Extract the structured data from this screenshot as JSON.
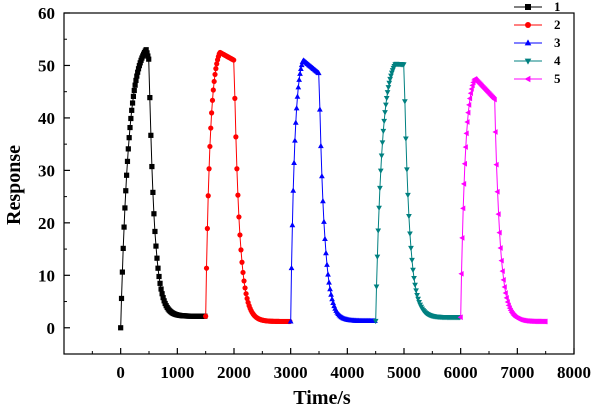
{
  "chart_data": {
    "type": "scatter",
    "title": "",
    "xlabel": "Time/s",
    "ylabel": "Response",
    "xlim": [
      -1000,
      8000
    ],
    "ylim": [
      -5,
      60
    ],
    "xticks": [
      0,
      1000,
      2000,
      3000,
      4000,
      5000,
      6000,
      7000,
      8000
    ],
    "yticks": [
      0,
      10,
      20,
      30,
      40,
      50,
      60
    ],
    "xtick_labels": [
      "0",
      "1000",
      "2000",
      "3000",
      "4000",
      "5000",
      "6000",
      "7000",
      "8000"
    ],
    "ytick_labels": [
      "0",
      "10",
      "20",
      "30",
      "40",
      "50",
      "60"
    ],
    "grid": false,
    "legend_position": "top-right",
    "series": [
      {
        "name": "1",
        "color": "#000000",
        "marker": "square",
        "t_on": 0,
        "t_off": 500,
        "t_end": 1500,
        "baseline_start": 0,
        "peak": 53,
        "peak_time": 450,
        "value_at_off": 51,
        "baseline_end": 2.2
      },
      {
        "name": "2",
        "color": "#ff0000",
        "marker": "circle",
        "t_on": 1500,
        "t_off": 2000,
        "t_end": 3000,
        "baseline_start": 2.2,
        "peak": 52.5,
        "peak_time": 1750,
        "value_at_off": 51,
        "baseline_end": 1.2
      },
      {
        "name": "3",
        "color": "#0000ff",
        "marker": "triangle-up",
        "t_on": 3000,
        "t_off": 3500,
        "t_end": 4500,
        "baseline_start": 1.2,
        "peak": 51,
        "peak_time": 3220,
        "value_at_off": 48.5,
        "baseline_end": 1.3
      },
      {
        "name": "4",
        "color": "#008080",
        "marker": "triangle-down",
        "t_on": 4500,
        "t_off": 5000,
        "t_end": 6000,
        "baseline_start": 1.3,
        "peak": 50.3,
        "peak_time": 4850,
        "value_at_off": 50.2,
        "baseline_end": 2.0
      },
      {
        "name": "5",
        "color": "#ff00ff",
        "marker": "triangle-left",
        "t_on": 6000,
        "t_off": 6600,
        "t_end": 7500,
        "baseline_start": 2.0,
        "peak": 47.5,
        "peak_time": 6250,
        "value_at_off": 43.5,
        "baseline_end": 1.2
      }
    ]
  }
}
